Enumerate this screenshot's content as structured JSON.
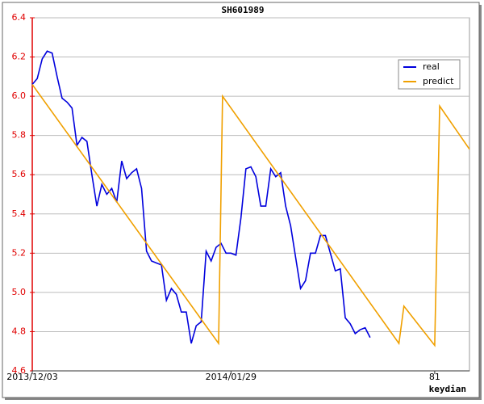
{
  "chart_data": {
    "type": "line",
    "title": "SH601989",
    "x_label": "keydian",
    "xlim": [
      0,
      88
    ],
    "xticks": [
      {
        "value": 0,
        "label": "2013/12/03"
      },
      {
        "value": 40,
        "label": "2014/01/29"
      },
      81
    ],
    "ylim": [
      4.6,
      6.4
    ],
    "yticks": [
      4.6,
      4.8,
      {
        "value": 5.0,
        "label": "5.0"
      },
      5.2,
      5.4,
      5.6,
      5.8,
      {
        "value": 6.0,
        "label": "6.0"
      },
      6.2,
      6.4
    ],
    "grid": true,
    "legend": "upper right",
    "series": [
      {
        "name": "real",
        "color": "#0000dd",
        "x": [
          0,
          1,
          2,
          3,
          4,
          5,
          6,
          7,
          8,
          9,
          10,
          11,
          12,
          13,
          14,
          15,
          16,
          17,
          18,
          19,
          20,
          21,
          22,
          23,
          24,
          25,
          26,
          27,
          28,
          29,
          30,
          31,
          32,
          33,
          34,
          35,
          36,
          37,
          38,
          39,
          40,
          41,
          42,
          43,
          44,
          45,
          46,
          47,
          48,
          49,
          50,
          51,
          52,
          53,
          54,
          55,
          56,
          57,
          58,
          59,
          60,
          61,
          62,
          63,
          64,
          65,
          66,
          67,
          68
        ],
        "values": [
          6.06,
          6.09,
          6.19,
          6.23,
          6.22,
          6.1,
          5.99,
          5.97,
          5.94,
          5.75,
          5.79,
          5.77,
          5.6,
          5.44,
          5.55,
          5.5,
          5.53,
          5.46,
          5.67,
          5.58,
          5.61,
          5.63,
          5.53,
          5.21,
          5.16,
          5.15,
          5.14,
          4.96,
          5.02,
          4.99,
          4.9,
          4.9,
          4.74,
          4.83,
          4.85,
          5.21,
          5.16,
          5.23,
          5.25,
          5.2,
          5.2,
          5.19,
          5.38,
          5.63,
          5.64,
          5.59,
          5.44,
          5.44,
          5.63,
          5.59,
          5.61,
          5.44,
          5.34,
          5.18,
          5.02,
          5.06,
          5.2,
          5.2,
          5.29,
          5.29,
          5.2,
          5.11,
          5.12,
          4.87,
          4.84,
          4.79,
          4.81,
          4.82,
          4.77
        ]
      },
      {
        "name": "predict",
        "color": "#f0a000",
        "x": [
          0,
          37.5,
          38.3,
          73.8,
          74.8,
          81,
          82,
          88
        ],
        "values": [
          6.06,
          4.74,
          6.0,
          4.74,
          4.93,
          4.73,
          5.95,
          5.73
        ]
      }
    ]
  }
}
